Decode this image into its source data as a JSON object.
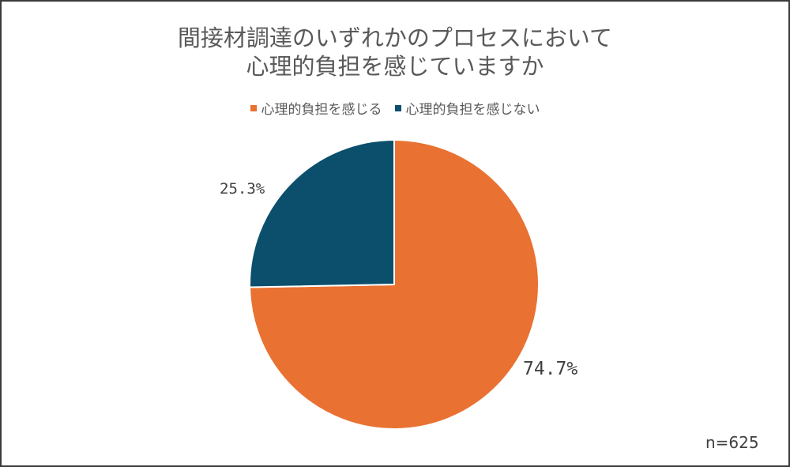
{
  "chart_data": {
    "type": "pie",
    "title": "間接材調達のいずれかのプロセスにおいて 心理的負担を感じていますか",
    "title_lines": [
      "間接材調達のいずれかのプロセスにおいて",
      "心理的負担を感じていますか"
    ],
    "categories": [
      "心理的負担を感じる",
      "心理的負担を感じない"
    ],
    "values": [
      74.7,
      25.3
    ],
    "unit": "%",
    "data_labels": [
      "74.7%",
      "25.3%"
    ],
    "colors": [
      "#E97132",
      "#0B4F6C"
    ],
    "legend_position": "top",
    "start_angle_deg": 0,
    "direction": "clockwise",
    "annotation": "n=625"
  },
  "title": {
    "line1": "間接材調達のいずれかのプロセスにおいて",
    "line2": "心理的負担を感じていますか"
  },
  "legend": [
    {
      "label": "心理的負担を感じる",
      "color": "#E97132"
    },
    {
      "label": "心理的負担を感じない",
      "color": "#0B4F6C"
    }
  ],
  "labels": {
    "a": "74.7%",
    "b": "25.3%"
  },
  "sample_size": "n=625"
}
